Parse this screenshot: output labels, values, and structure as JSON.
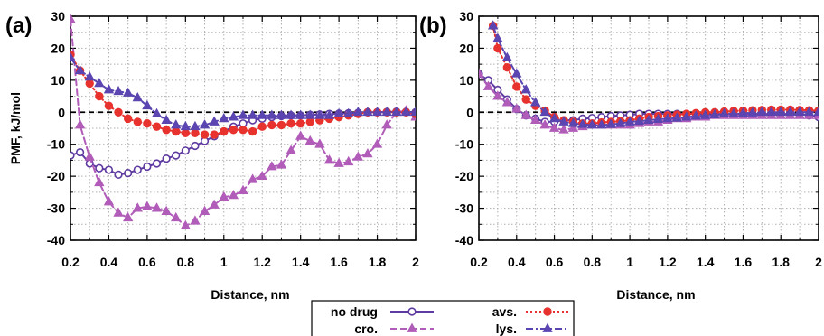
{
  "figure": {
    "layout": "two panels side by side, shared legend bottom-center",
    "legend_placement": "bottom-center"
  },
  "colors": {
    "no_drug": "#5e3aa1",
    "cro": "#b05cb8",
    "avs": "#e8322e",
    "lys": "#5b45b0",
    "zero_line": "#000000"
  },
  "chart_data": [
    {
      "panel_label": "(a)",
      "type": "line",
      "xlabel": "Distance, nm",
      "ylabel": "PMF, kJ/mol",
      "xlim": [
        0.2,
        2.0
      ],
      "ylim": [
        -40,
        30
      ],
      "xticks": [
        "0.2",
        "0.4",
        "0.6",
        "0.8",
        "1",
        "1.2",
        "1.4",
        "1.6",
        "1.8",
        "2"
      ],
      "yticks": [
        "-40",
        "-30",
        "-20",
        "-10",
        "0",
        "10",
        "20",
        "30"
      ],
      "grid": true,
      "reference_line_y": 0,
      "series": [
        {
          "name": "no drug",
          "key": "no_drug",
          "marker": "circle-open",
          "dash": "solid",
          "x": [
            0.2,
            0.25,
            0.3,
            0.35,
            0.4,
            0.45,
            0.5,
            0.55,
            0.6,
            0.65,
            0.7,
            0.75,
            0.8,
            0.85,
            0.9,
            0.95,
            1.0,
            1.05,
            1.1,
            1.15,
            1.2,
            1.25,
            1.3,
            1.35,
            1.4,
            1.45,
            1.5,
            1.55,
            1.6,
            1.65,
            1.7,
            1.75,
            1.8,
            1.85,
            1.9,
            1.95,
            2.0
          ],
          "y": [
            -13.5,
            -12.5,
            -16,
            -17.5,
            -18,
            -19.5,
            -19,
            -18,
            -17,
            -16,
            -14.5,
            -13.5,
            -12,
            -10.5,
            -9,
            -7.5,
            -6,
            -4.5,
            -3.5,
            -2.5,
            -2,
            -1.5,
            -1.2,
            -1,
            -1,
            -0.8,
            -0.7,
            -0.5,
            -0.4,
            -0.3,
            -0.2,
            0,
            0,
            0.1,
            0.2,
            0.1,
            0
          ]
        },
        {
          "name": "cro.",
          "key": "cro",
          "marker": "triangle",
          "dash": "dashed",
          "x": [
            0.2,
            0.25,
            0.3,
            0.35,
            0.4,
            0.45,
            0.5,
            0.55,
            0.6,
            0.65,
            0.7,
            0.75,
            0.8,
            0.85,
            0.9,
            0.95,
            1.0,
            1.05,
            1.1,
            1.15,
            1.2,
            1.25,
            1.3,
            1.35,
            1.4,
            1.45,
            1.5,
            1.55,
            1.6,
            1.65,
            1.7,
            1.75,
            1.8,
            1.85,
            1.9,
            1.95,
            2.0
          ],
          "y": [
            29,
            -4,
            -14,
            -22,
            -28,
            -31.5,
            -33,
            -30,
            -29.5,
            -30,
            -31,
            -33,
            -35.5,
            -34,
            -31,
            -29,
            -26.5,
            -26,
            -24.5,
            -21,
            -20,
            -17,
            -16.5,
            -12,
            -7.5,
            -9,
            -10,
            -15,
            -16,
            -15.5,
            -14,
            -13,
            -10,
            -4,
            0,
            0.5,
            -1.5
          ]
        },
        {
          "name": "avs.",
          "key": "avs",
          "marker": "circle-filled",
          "dash": "dotted",
          "x": [
            0.2,
            0.25,
            0.3,
            0.35,
            0.4,
            0.45,
            0.5,
            0.55,
            0.6,
            0.65,
            0.7,
            0.75,
            0.8,
            0.85,
            0.9,
            0.95,
            1.0,
            1.05,
            1.1,
            1.15,
            1.2,
            1.25,
            1.3,
            1.35,
            1.4,
            1.45,
            1.5,
            1.55,
            1.6,
            1.65,
            1.7,
            1.75,
            1.8,
            1.85,
            1.9,
            1.95,
            2.0
          ],
          "y": [
            18,
            13,
            9,
            5,
            2,
            0,
            -2,
            -3,
            -3.5,
            -4.5,
            -5.5,
            -6,
            -6.5,
            -6.5,
            -7,
            -7,
            -6,
            -5.5,
            -5.5,
            -6,
            -4.5,
            -4,
            -4,
            -3.5,
            -3.5,
            -3,
            -2.5,
            -2,
            -1.5,
            -1,
            -0.5,
            0,
            0,
            0,
            0,
            0,
            -0.5
          ]
        },
        {
          "name": "lys.",
          "key": "lys",
          "marker": "triangle",
          "dash": "dashdot",
          "x": [
            0.2,
            0.25,
            0.3,
            0.35,
            0.4,
            0.45,
            0.5,
            0.55,
            0.6,
            0.65,
            0.7,
            0.75,
            0.8,
            0.85,
            0.9,
            0.95,
            1.0,
            1.05,
            1.1,
            1.15,
            1.2,
            1.25,
            1.3,
            1.35,
            1.4,
            1.45,
            1.5,
            1.55,
            1.6,
            1.65,
            1.7,
            1.75,
            1.8,
            1.85,
            1.9,
            1.95,
            2.0
          ],
          "y": [
            17,
            13,
            11,
            9,
            7,
            6.5,
            6,
            4.5,
            2,
            -0.5,
            -2.5,
            -4,
            -4.5,
            -4.5,
            -4,
            -3,
            -2,
            -1.5,
            -1,
            -1,
            -1,
            -1,
            -1,
            -1,
            -1,
            -1,
            -1,
            -1,
            -0.5,
            -0.5,
            0,
            0,
            0,
            0,
            0,
            0,
            0
          ]
        }
      ]
    },
    {
      "panel_label": "(b)",
      "type": "line",
      "xlabel": "Distance, nm",
      "ylabel": "",
      "xlim": [
        0.2,
        2.0
      ],
      "ylim": [
        -40,
        30
      ],
      "xticks": [
        "0.2",
        "0.4",
        "0.6",
        "0.8",
        "1",
        "1.2",
        "1.4",
        "1.6",
        "1.8",
        "2"
      ],
      "yticks": [
        "-40",
        "-30",
        "-20",
        "-10",
        "0",
        "10",
        "20",
        "30"
      ],
      "grid": true,
      "reference_line_y": 0,
      "series": [
        {
          "name": "no drug",
          "key": "no_drug",
          "marker": "circle-open",
          "dash": "solid",
          "x": [
            0.2,
            0.25,
            0.3,
            0.35,
            0.4,
            0.45,
            0.5,
            0.55,
            0.6,
            0.65,
            0.7,
            0.75,
            0.8,
            0.85,
            0.9,
            0.95,
            1.0,
            1.05,
            1.1,
            1.15,
            1.2,
            1.25,
            1.3,
            1.35,
            1.4,
            1.45,
            1.5,
            1.55,
            1.6,
            1.65,
            1.7,
            1.75,
            1.8,
            1.85,
            1.9,
            1.95,
            2.0
          ],
          "y": [
            12,
            10,
            7,
            4,
            1,
            -1,
            -2,
            -3,
            -3,
            -2.5,
            -2.5,
            -2,
            -1.8,
            -1.5,
            -1.2,
            -1,
            -0.8,
            -0.5,
            -0.5,
            -0.5,
            -0.5,
            -0.5,
            -0.5,
            -0.5,
            -0.5,
            -0.5,
            -0.5,
            -0.5,
            -0.5,
            -0.5,
            -0.5,
            -0.5,
            -0.5,
            -0.5,
            -0.5,
            -1,
            -1.5
          ]
        },
        {
          "name": "cro.",
          "key": "cro",
          "marker": "triangle",
          "dash": "dashed",
          "x": [
            0.2,
            0.25,
            0.3,
            0.35,
            0.4,
            0.45,
            0.5,
            0.55,
            0.6,
            0.65,
            0.7,
            0.75,
            0.8,
            0.85,
            0.9,
            0.95,
            1.0,
            1.05,
            1.1,
            1.15,
            1.2,
            1.25,
            1.3,
            1.35,
            1.4,
            1.45,
            1.5,
            1.55,
            1.6,
            1.65,
            1.7,
            1.75,
            1.8,
            1.85,
            1.9,
            1.95,
            2.0
          ],
          "y": [
            12,
            8,
            5,
            3,
            1,
            -1,
            -2.5,
            -4,
            -5,
            -5.5,
            -5,
            -4.5,
            -4,
            -4,
            -4,
            -4,
            -4,
            -3.5,
            -3,
            -3,
            -2.5,
            -2,
            -2,
            -1.5,
            -1.5,
            -1,
            -1,
            -1,
            -1,
            -1,
            -1,
            -1,
            -1,
            -1,
            -1,
            -1,
            -1
          ]
        },
        {
          "name": "avs.",
          "key": "avs",
          "marker": "circle-filled",
          "dash": "dotted",
          "x": [
            0.275,
            0.3,
            0.35,
            0.4,
            0.45,
            0.5,
            0.55,
            0.6,
            0.65,
            0.7,
            0.75,
            0.8,
            0.85,
            0.9,
            0.95,
            1.0,
            1.05,
            1.1,
            1.15,
            1.2,
            1.25,
            1.3,
            1.35,
            1.4,
            1.45,
            1.5,
            1.55,
            1.6,
            1.65,
            1.7,
            1.75,
            1.8,
            1.85,
            1.9,
            1.95,
            2.0
          ],
          "y": [
            27,
            20,
            14,
            8,
            4,
            2,
            0.5,
            -1.5,
            -2.5,
            -3,
            -3.5,
            -3.5,
            -3.2,
            -3,
            -2.8,
            -2.5,
            -2,
            -1.5,
            -1.2,
            -1,
            -0.8,
            -0.5,
            -0.3,
            0,
            0,
            0.2,
            0.4,
            0.5,
            0.6,
            0.7,
            0.8,
            0.8,
            0.8,
            0.7,
            0.6,
            0.5
          ]
        },
        {
          "name": "lys.",
          "key": "lys",
          "marker": "triangle",
          "dash": "dashdot",
          "x": [
            0.275,
            0.3,
            0.35,
            0.4,
            0.45,
            0.5,
            0.55,
            0.6,
            0.65,
            0.7,
            0.75,
            0.8,
            0.85,
            0.9,
            0.95,
            1.0,
            1.05,
            1.1,
            1.15,
            1.2,
            1.25,
            1.3,
            1.35,
            1.4,
            1.45,
            1.5,
            1.55,
            1.6,
            1.65,
            1.7,
            1.75,
            1.8,
            1.85,
            1.9,
            1.95,
            2.0
          ],
          "y": [
            27,
            23,
            17,
            12,
            7,
            3,
            0,
            -2,
            -3,
            -3.5,
            -3.8,
            -4,
            -4,
            -3.8,
            -3.5,
            -3,
            -2.8,
            -2.5,
            -2.2,
            -2,
            -1.8,
            -1.5,
            -1.2,
            -1,
            -0.8,
            -0.5,
            -0.5,
            -0.3,
            -0.2,
            0,
            0,
            0,
            0,
            0,
            0,
            0
          ]
        }
      ]
    }
  ],
  "legend": [
    {
      "key": "no_drug",
      "label": "no drug"
    },
    {
      "key": "cro",
      "label": "cro."
    },
    {
      "key": "avs",
      "label": "avs."
    },
    {
      "key": "lys",
      "label": "lys."
    }
  ]
}
